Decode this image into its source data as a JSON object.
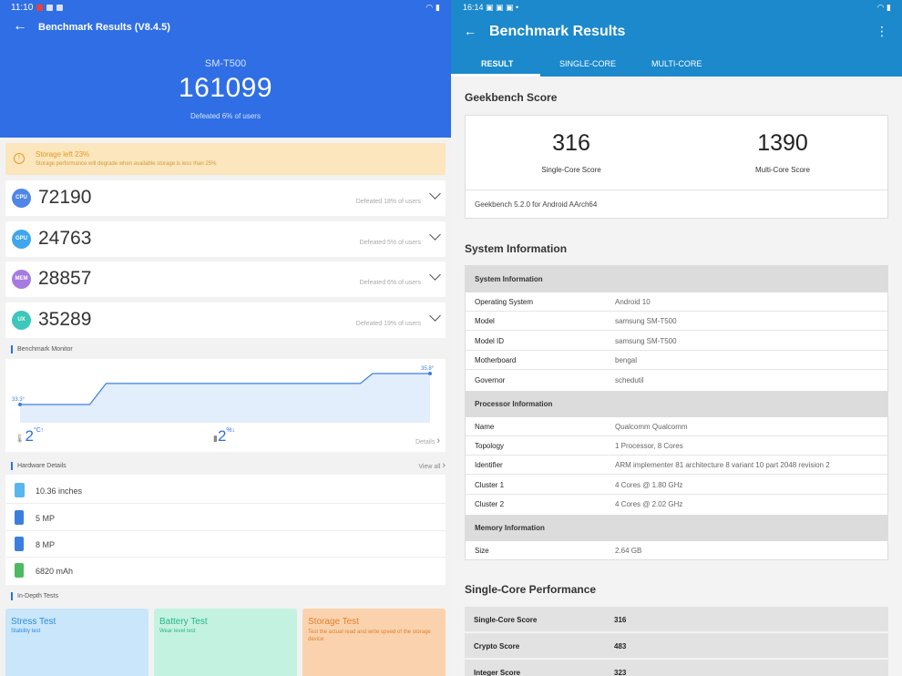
{
  "left": {
    "status": {
      "time": "11:10"
    },
    "header": {
      "title": "Benchmark Results (V8.4.5)",
      "device": "SM-T500",
      "total_score": "161099",
      "defeated": "Defeated 6% of users"
    },
    "warning": {
      "title": "Storage left 23%",
      "message": "Storage performance will degrade when available storage is less than 25%"
    },
    "scores": [
      {
        "badge": "CPU",
        "value": "72190",
        "defeated": "Defeated 18% of users",
        "color": "#4f86e8"
      },
      {
        "badge": "GPU",
        "value": "24763",
        "defeated": "Defeated 5% of users",
        "color": "#3fa6ee"
      },
      {
        "badge": "MEM",
        "value": "28857",
        "defeated": "Defeated 6% of users",
        "color": "#a57be2"
      },
      {
        "badge": "UX",
        "value": "35289",
        "defeated": "Defeated 19% of users",
        "color": "#3bc7b9"
      }
    ],
    "monitor": {
      "title": "Benchmark Monitor",
      "start_label": "33.3°",
      "end_label": "35.8°",
      "temp_value": "2",
      "temp_unit": "°C↑",
      "battery_value": "2",
      "battery_unit": "%↓",
      "details": "Details",
      "temperature_curve": [
        {
          "t": 0.0,
          "temp": 33.3
        },
        {
          "t": 0.17,
          "temp": 33.3
        },
        {
          "t": 0.21,
          "temp": 35.0
        },
        {
          "t": 0.83,
          "temp": 35.0
        },
        {
          "t": 0.86,
          "temp": 35.8
        },
        {
          "t": 1.0,
          "temp": 35.8
        }
      ]
    },
    "hardware": {
      "title": "Hardware Details",
      "view_all": "View all",
      "items": [
        {
          "icon": "screen-icon",
          "text": "10.36 inches",
          "color": "#59b6ee"
        },
        {
          "icon": "front-camera-icon",
          "text": "5 MP",
          "color": "#3a7fe0"
        },
        {
          "icon": "rear-camera-icon",
          "text": "8 MP",
          "color": "#3a7fe0"
        },
        {
          "icon": "battery-icon",
          "text": "6820 mAh",
          "color": "#4cba62"
        }
      ]
    },
    "indepth": {
      "title": "In-Depth Tests",
      "tests": [
        {
          "title": "Stress Test",
          "subtitle": "Stability test",
          "bg": "#c9e6fb",
          "fg": "#2f8bd8"
        },
        {
          "title": "Battery Test",
          "subtitle": "Wear level test",
          "bg": "#c4f2e1",
          "fg": "#27b58a"
        },
        {
          "title": "Storage Test",
          "subtitle": "Test the actual read and write speed of the storage device",
          "bg": "#fad3ae",
          "fg": "#e37e2b"
        }
      ]
    }
  },
  "right": {
    "status": {
      "time": "16:14"
    },
    "header": {
      "title": "Benchmark Results"
    },
    "tabs": [
      "RESULT",
      "SINGLE-CORE",
      "MULTI-CORE"
    ],
    "geekbench": {
      "section_title": "Geekbench Score",
      "single_core": "316",
      "single_core_label": "Single-Core Score",
      "multi_core": "1390",
      "multi_core_label": "Multi-Core Score",
      "version": "Geekbench 5.2.0 for Android AArch64"
    },
    "system_info": {
      "section_title": "System Information",
      "groups": [
        {
          "header": "System Information",
          "rows": [
            {
              "k": "Operating System",
              "v": "Android 10"
            },
            {
              "k": "Model",
              "v": "samsung SM-T500"
            },
            {
              "k": "Model ID",
              "v": "samsung SM-T500"
            },
            {
              "k": "Motherboard",
              "v": "bengal"
            },
            {
              "k": "Governor",
              "v": "schedutil"
            }
          ]
        },
        {
          "header": "Processor Information",
          "rows": [
            {
              "k": "Name",
              "v": "Qualcomm Qualcomm"
            },
            {
              "k": "Topology",
              "v": "1 Processor, 8 Cores"
            },
            {
              "k": "Identifier",
              "v": "ARM implementer 81 architecture 8 variant 10 part 2048 revision 2"
            },
            {
              "k": "Cluster 1",
              "v": "4 Cores @ 1.80 GHz"
            },
            {
              "k": "Cluster 2",
              "v": "4 Cores @ 2.02 GHz"
            }
          ]
        },
        {
          "header": "Memory Information",
          "rows": [
            {
              "k": "Size",
              "v": "2.64 GB"
            }
          ]
        }
      ]
    },
    "single_core_perf": {
      "section_title": "Single-Core Performance",
      "rows": [
        {
          "k": "Single-Core Score",
          "v": "316"
        },
        {
          "k": "Crypto Score",
          "v": "483"
        },
        {
          "k": "Integer Score",
          "v": "323"
        }
      ]
    }
  }
}
